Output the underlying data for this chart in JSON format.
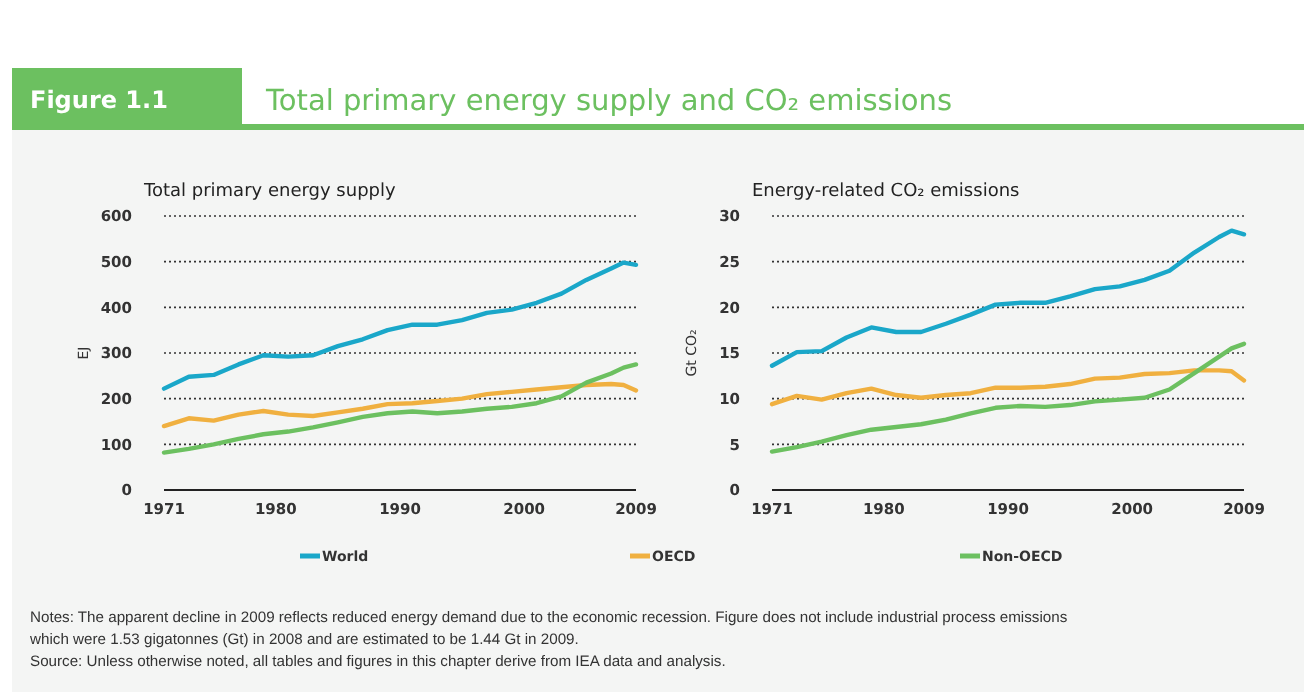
{
  "chart_data": [
    {
      "type": "line",
      "title": "Total primary energy supply",
      "ylabel": "EJ",
      "annotations": [
        "Figure 1.1",
        "Total primary energy supply and CO₂ emissions",
        "Notes: The apparent decline in 2009 reflects reduced energy demand due to the economic recession. Figure does not include industrial process emissions which were 1.53 gigatonnes (Gt) in 2008 and are estimated to be 1.44 Gt in 2009.",
        "Source: Unless otherwise noted, all tables and figures in this chapter derive from IEA data and analysis."
      ],
      "x": [
        1971,
        1973,
        1975,
        1977,
        1979,
        1981,
        1983,
        1985,
        1987,
        1989,
        1991,
        1993,
        1995,
        1997,
        1999,
        2001,
        2003,
        2005,
        2007,
        2008,
        2009
      ],
      "series": [
        {
          "name": "World",
          "color": "#1aa7c9",
          "values": [
            222,
            248,
            252,
            275,
            295,
            292,
            295,
            315,
            330,
            350,
            362,
            362,
            372,
            388,
            395,
            410,
            430,
            460,
            485,
            498,
            493
          ]
        },
        {
          "name": "OECD",
          "color": "#f0b040",
          "values": [
            140,
            157,
            152,
            165,
            173,
            165,
            162,
            170,
            178,
            188,
            190,
            195,
            200,
            210,
            215,
            220,
            225,
            230,
            232,
            230,
            218
          ]
        },
        {
          "name": "Non-OECD",
          "color": "#6cc060",
          "values": [
            82,
            90,
            100,
            112,
            122,
            128,
            137,
            148,
            160,
            168,
            172,
            168,
            172,
            178,
            182,
            190,
            205,
            235,
            255,
            268,
            275
          ]
        }
      ],
      "xlim": [
        1971,
        2009
      ],
      "xticks": [
        1971,
        1980,
        1990,
        2000,
        2009
      ],
      "ylim": [
        0,
        600
      ],
      "yticks": [
        0,
        100,
        200,
        300,
        400,
        500,
        600
      ],
      "grid": "y",
      "legend": "bottom"
    },
    {
      "type": "line",
      "title": "Energy-related CO₂ emissions",
      "ylabel": "Gt CO₂",
      "x": [
        1971,
        1973,
        1975,
        1977,
        1979,
        1981,
        1983,
        1985,
        1987,
        1989,
        1991,
        1993,
        1995,
        1997,
        1999,
        2001,
        2003,
        2005,
        2007,
        2008,
        2009
      ],
      "series": [
        {
          "color": "#1aa7c9",
          "values": [
            13.6,
            15.1,
            15.2,
            16.7,
            17.8,
            17.3,
            17.3,
            18.2,
            19.2,
            20.3,
            20.5,
            20.5,
            21.2,
            22.0,
            22.3,
            23.0,
            24.0,
            26.0,
            27.7,
            28.4,
            28.0
          ]
        },
        {
          "color": "#f0b040",
          "values": [
            9.4,
            10.3,
            9.9,
            10.6,
            11.1,
            10.4,
            10.1,
            10.4,
            10.6,
            11.2,
            11.2,
            11.3,
            11.6,
            12.2,
            12.3,
            12.7,
            12.8,
            13.1,
            13.1,
            13.0,
            12.0
          ]
        },
        {
          "color": "#6cc060",
          "values": [
            4.2,
            4.7,
            5.3,
            6.0,
            6.6,
            6.9,
            7.2,
            7.7,
            8.4,
            9.0,
            9.2,
            9.1,
            9.3,
            9.7,
            9.9,
            10.1,
            11.0,
            12.8,
            14.6,
            15.5,
            16.0
          ]
        }
      ],
      "xlim": [
        1971,
        2009
      ],
      "xticks": [
        1971,
        1980,
        1990,
        2000,
        2009
      ],
      "ylim": [
        0,
        30
      ],
      "yticks": [
        0,
        5,
        10,
        15,
        20,
        25,
        30
      ],
      "grid": "y"
    }
  ]
}
